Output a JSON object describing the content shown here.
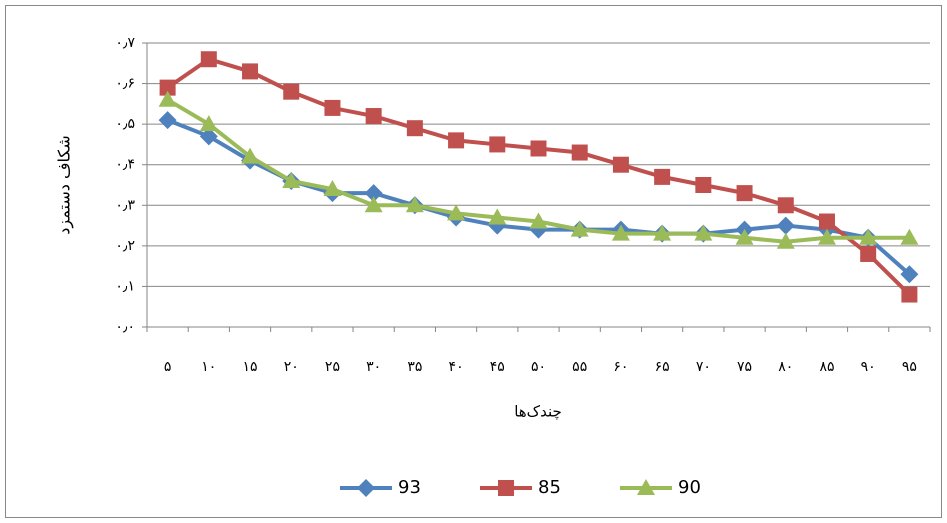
{
  "chart_data": {
    "type": "line",
    "y_label": "شکاف دستمزد",
    "x_label": "چندک‌ها",
    "categories": [
      "۵",
      "۱۰",
      "۱۵",
      "۲۰",
      "۲۵",
      "۳۰",
      "۳۵",
      "۴۰",
      "۴۵",
      "۵۰",
      "۵۵",
      "۶۰",
      "۶۵",
      "۷۰",
      "۷۵",
      "۸۰",
      "۸۵",
      "۹۰",
      "۹۵"
    ],
    "series": [
      {
        "name": "93",
        "color": "#4f81bd",
        "marker": "diamond",
        "values": [
          0.51,
          0.47,
          0.41,
          0.36,
          0.33,
          0.33,
          0.3,
          0.27,
          0.25,
          0.24,
          0.24,
          0.24,
          0.23,
          0.23,
          0.24,
          0.25,
          0.24,
          0.22,
          0.13
        ]
      },
      {
        "name": "85",
        "color": "#c0504d",
        "marker": "square",
        "values": [
          0.59,
          0.66,
          0.63,
          0.58,
          0.54,
          0.52,
          0.49,
          0.46,
          0.45,
          0.44,
          0.43,
          0.4,
          0.37,
          0.35,
          0.33,
          0.3,
          0.26,
          0.18,
          0.08
        ]
      },
      {
        "name": "90",
        "color": "#9bbb59",
        "marker": "triangle",
        "values": [
          0.56,
          0.5,
          0.42,
          0.36,
          0.34,
          0.3,
          0.3,
          0.28,
          0.27,
          0.26,
          0.24,
          0.23,
          0.23,
          0.23,
          0.22,
          0.21,
          0.22,
          0.22,
          0.22
        ]
      }
    ],
    "ylim": [
      0,
      0.7
    ],
    "yticks": [
      {
        "value": 0,
        "label": "۰٫۰"
      },
      {
        "value": 0.1,
        "label": "۰٫۱"
      },
      {
        "value": 0.2,
        "label": "۰٫۲"
      },
      {
        "value": 0.3,
        "label": "۰٫۳"
      },
      {
        "value": 0.4,
        "label": "۰٫۴"
      },
      {
        "value": 0.5,
        "label": "۰٫۵"
      },
      {
        "value": 0.6,
        "label": "۰٫۶"
      },
      {
        "value": 0.7,
        "label": "۰٫۷"
      }
    ],
    "grid": true,
    "legend": "bottom"
  }
}
